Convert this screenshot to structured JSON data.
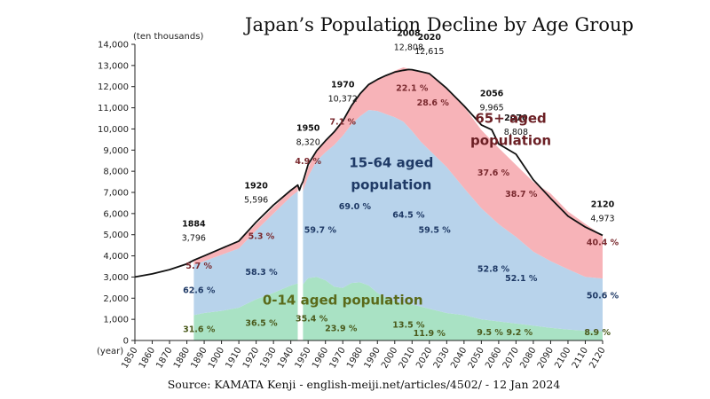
{
  "chart_data": {
    "type": "area",
    "title": "Japan’s Population Decline by Age Group",
    "source": "Source: KAMATA Kenji - english-meiji.net/articles/4502/ - 12 Jan 2024",
    "y_unit": "(ten thousands)",
    "x_unit": "(year)",
    "xlim": [
      1850,
      2120
    ],
    "ylim": [
      0,
      14000
    ],
    "x_ticks": [
      1850,
      1860,
      1870,
      1880,
      1890,
      1900,
      1910,
      1920,
      1930,
      1940,
      1950,
      1960,
      1970,
      1980,
      1990,
      2000,
      2010,
      2020,
      2030,
      2040,
      2050,
      2060,
      2070,
      2080,
      2090,
      2100,
      2110,
      2120
    ],
    "y_ticks": [
      0,
      1000,
      2000,
      3000,
      4000,
      5000,
      6000,
      7000,
      8000,
      9000,
      10000,
      11000,
      12000,
      13000,
      14000
    ],
    "y_tick_labels": [
      "0",
      "1,000",
      "2,000",
      "3,000",
      "4,000",
      "5,000",
      "6,000",
      "7,000",
      "8,000",
      "9,000",
      "10,000",
      "11,000",
      "12,000",
      "13,000",
      "14,000"
    ],
    "series": [
      {
        "name": "0-14 aged population",
        "color": "#a9e2c4",
        "x": [
          1884,
          1890,
          1900,
          1910,
          1920,
          1930,
          1940,
          1944,
          1947,
          1950,
          1955,
          1960,
          1965,
          1970,
          1975,
          1980,
          1985,
          1990,
          1995,
          2000,
          2005,
          2010,
          2015,
          2020,
          2030,
          2040,
          2050,
          2060,
          2070,
          2080,
          2090,
          2100,
          2110,
          2120
        ],
        "values": [
          1200,
          1300,
          1400,
          1550,
          1950,
          2250,
          2600,
          2700,
          2650,
          2950,
          3000,
          2850,
          2550,
          2480,
          2720,
          2750,
          2600,
          2250,
          2000,
          1850,
          1750,
          1700,
          1600,
          1500,
          1300,
          1200,
          1000,
          900,
          800,
          700,
          600,
          520,
          460,
          440
        ]
      },
      {
        "name": "15-64 aged population",
        "color": "#b8d3eb",
        "x": [
          1884,
          1890,
          1900,
          1910,
          1920,
          1930,
          1940,
          1944,
          1947,
          1950,
          1955,
          1960,
          1965,
          1970,
          1975,
          1980,
          1985,
          1990,
          1995,
          2000,
          2005,
          2010,
          2015,
          2020,
          2030,
          2040,
          2050,
          2060,
          2070,
          2080,
          2090,
          2100,
          2110,
          2120
        ],
        "values": [
          2376,
          2450,
          2650,
          2800,
          3250,
          3750,
          4200,
          4350,
          4400,
          4800,
          5500,
          6050,
          6690,
          7200,
          7500,
          7850,
          8300,
          8600,
          8700,
          8700,
          8600,
          8200,
          7800,
          7500,
          6900,
          6000,
          5250,
          4600,
          4100,
          3500,
          3150,
          2850,
          2550,
          2490
        ]
      },
      {
        "name": "65+ aged population",
        "color": "#f7b3b8",
        "x": [
          1884,
          1890,
          1900,
          1910,
          1920,
          1930,
          1940,
          1944,
          1947,
          1950,
          1955,
          1960,
          1965,
          1970,
          1975,
          1980,
          1985,
          1990,
          1995,
          2000,
          2005,
          2010,
          2015,
          2020,
          2030,
          2040,
          2050,
          2060,
          2070,
          2080,
          2090,
          2100,
          2110,
          2120
        ],
        "values": [
          220,
          250,
          300,
          320,
          300,
          300,
          300,
          300,
          300,
          410,
          480,
          540,
          620,
          740,
          880,
          1060,
          1240,
          1490,
          1830,
          2200,
          2560,
          2900,
          3300,
          3615,
          3720,
          3850,
          3700,
          3600,
          3400,
          3300,
          3200,
          2730,
          2500,
          2033
        ]
      }
    ],
    "total_line": {
      "name": "Total",
      "x": [
        1850,
        1860,
        1870,
        1880,
        1884,
        1890,
        1900,
        1910,
        1920,
        1930,
        1940,
        1944,
        1945,
        1946,
        1947,
        1950,
        1955,
        1960,
        1965,
        1970,
        1975,
        1980,
        1985,
        1990,
        1995,
        2000,
        2005,
        2008,
        2010,
        2015,
        2020,
        2030,
        2040,
        2050,
        2056,
        2060,
        2070,
        2080,
        2090,
        2100,
        2110,
        2120
      ],
      "values": [
        3000,
        3150,
        3350,
        3620,
        3796,
        4000,
        4350,
        4700,
        5596,
        6400,
        7100,
        7350,
        7100,
        7350,
        7500,
        8320,
        8980,
        9440,
        9860,
        10372,
        11100,
        11660,
        12100,
        12340,
        12530,
        12690,
        12770,
        12808,
        12800,
        12710,
        12615,
        11920,
        11090,
        10190,
        9965,
        9290,
        8808,
        7600,
        6720,
        5880,
        5360,
        4973
      ]
    },
    "annotations": [
      {
        "year": "1884",
        "value": "3,796",
        "x": 1884,
        "y": 3796
      },
      {
        "year": "1920",
        "value": "5,596",
        "x": 1920,
        "y": 5596
      },
      {
        "year": "1950",
        "value": "8,320",
        "x": 1950,
        "y": 8320
      },
      {
        "year": "1970",
        "value": "10,372",
        "x": 1970,
        "y": 10372
      },
      {
        "year": "2008",
        "value": "12,808",
        "x": 2008,
        "y": 12808
      },
      {
        "year": "2020",
        "value": "12,615",
        "x": 2020,
        "y": 12615
      },
      {
        "year": "2056",
        "value": "9,965",
        "x": 2056,
        "y": 9965
      },
      {
        "year": "2070",
        "value": "8,808",
        "x": 2070,
        "y": 8808
      },
      {
        "year": "2120",
        "value": "4,973",
        "x": 2120,
        "y": 4973
      }
    ],
    "percent_labels": [
      {
        "text": "5.7 %",
        "x": 1887,
        "y": 3400,
        "group": "65+"
      },
      {
        "text": "62.6 %",
        "x": 1887,
        "y": 2250,
        "group": "15-64"
      },
      {
        "text": "31.6 %",
        "x": 1887,
        "y": 400,
        "group": "0-14"
      },
      {
        "text": "5.3 %",
        "x": 1923,
        "y": 4800,
        "group": "65+"
      },
      {
        "text": "58.3 %",
        "x": 1923,
        "y": 3100,
        "group": "15-64"
      },
      {
        "text": "36.5 %",
        "x": 1923,
        "y": 700,
        "group": "0-14"
      },
      {
        "text": "4.9 %",
        "x": 1950,
        "y": 8350,
        "group": "65+"
      },
      {
        "text": "59.7 %",
        "x": 1957,
        "y": 5100,
        "group": "15-64"
      },
      {
        "text": "35.4 %",
        "x": 1952,
        "y": 900,
        "group": "0-14"
      },
      {
        "text": "7.1 %",
        "x": 1970,
        "y": 10200,
        "group": "65+"
      },
      {
        "text": "69.0 %",
        "x": 1977,
        "y": 6200,
        "group": "15-64"
      },
      {
        "text": "23.9 %",
        "x": 1969,
        "y": 450,
        "group": "0-14"
      },
      {
        "text": "22.1 %",
        "x": 2010,
        "y": 11800,
        "group": "65+"
      },
      {
        "text": "64.5 %",
        "x": 2008,
        "y": 5800,
        "group": "15-64"
      },
      {
        "text": "13.5 %",
        "x": 2008,
        "y": 600,
        "group": "0-14"
      },
      {
        "text": "28.6 %",
        "x": 2022,
        "y": 11100,
        "group": "65+"
      },
      {
        "text": "59.5 %",
        "x": 2023,
        "y": 5100,
        "group": "15-64"
      },
      {
        "text": "11.9 %",
        "x": 2020,
        "y": 200,
        "group": "0-14"
      },
      {
        "text": "37.6 %",
        "x": 2057,
        "y": 7800,
        "group": "65+"
      },
      {
        "text": "52.8 %",
        "x": 2057,
        "y": 3250,
        "group": "15-64"
      },
      {
        "text": "9.5 %",
        "x": 2055,
        "y": 250,
        "group": "0-14"
      },
      {
        "text": "38.7 %",
        "x": 2073,
        "y": 6800,
        "group": "65+"
      },
      {
        "text": "52.1 %",
        "x": 2073,
        "y": 2800,
        "group": "15-64"
      },
      {
        "text": "9.2 %",
        "x": 2072,
        "y": 250,
        "group": "0-14"
      },
      {
        "text": "40.4 %",
        "x": 2120,
        "y": 4500,
        "group": "65+"
      },
      {
        "text": "50.6 %",
        "x": 2120,
        "y": 2000,
        "group": "15-64"
      },
      {
        "text": "8.9 %",
        "x": 2117,
        "y": 250,
        "group": "0-14"
      }
    ],
    "group_labels": [
      {
        "lines": [
          "65+ aged",
          "population"
        ],
        "x": 2067,
        "y": 10300,
        "group": "65+"
      },
      {
        "lines": [
          "15-64 aged",
          "population"
        ],
        "x": 1998,
        "y": 8200,
        "group": "15-64"
      },
      {
        "lines": [
          "0-14 aged population"
        ],
        "x": 1970,
        "y": 1700,
        "group": "0-14"
      }
    ],
    "label_colors": {
      "65+": "#7a2a2f",
      "15-64": "#1f3a66",
      "0-14": "#4a5a1c"
    },
    "group_label_colors": {
      "65+": "#6b1f24",
      "15-64": "#1f3a66",
      "0-14": "#5a6a1a"
    },
    "gap_years": [
      1944,
      1947
    ],
    "grid": false,
    "legend": "none (direct labels)"
  }
}
